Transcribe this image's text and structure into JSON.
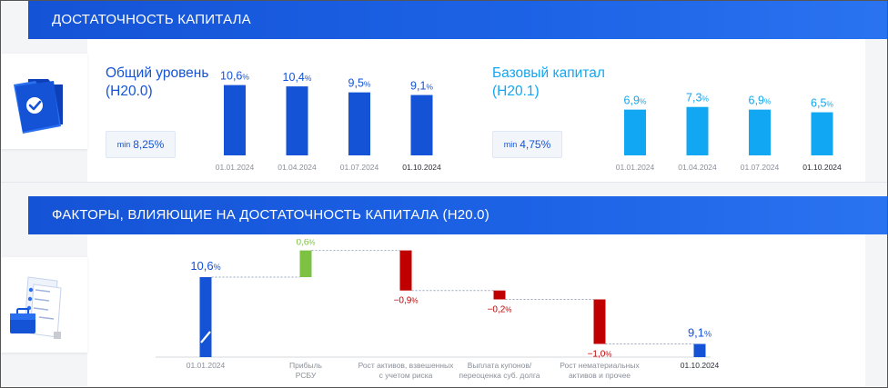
{
  "section1": {
    "title": "ДОСТАТОЧНОСТЬ КАПИТАЛА"
  },
  "section2": {
    "title": "ФАКТОРЫ, ВЛИЯЮЩИЕ НА ДОСТАТОЧНОСТЬ КАПИТАЛА (Н20.0)"
  },
  "icons": {
    "top": "folder-check-icon",
    "bottom": "document-briefcase-icon"
  },
  "colors": {
    "banner": "#1553d6",
    "dark_bar": "#1553d6",
    "light_bar": "#12a7f2",
    "positive": "#7dc242",
    "negative": "#c00000",
    "text_gray": "#8a8f98"
  },
  "metric1": {
    "title_line1": "Общий уровень",
    "title_line2": "(Н20.0)",
    "min_label": "min",
    "min_value": "8,25%"
  },
  "metric2": {
    "title_line1": "Базовый капитал",
    "title_line2": "(Н20.1)",
    "min_label": "min",
    "min_value": "4,75%"
  },
  "chart_data": [
    {
      "type": "bar",
      "title": "Общий уровень (Н20.0)",
      "categories": [
        "01.01.2024",
        "01.04.2024",
        "01.07.2024",
        "01.10.2024"
      ],
      "values": [
        10.6,
        10.4,
        9.5,
        9.1
      ],
      "labels": [
        {
          "num": "10,6",
          "unit": "%"
        },
        {
          "num": "10,4",
          "unit": "%"
        },
        {
          "num": "9,5",
          "unit": "%"
        },
        {
          "num": "9,1",
          "unit": "%"
        }
      ],
      "color": "#1553d6"
    },
    {
      "type": "bar",
      "title": "Базовый капитал (Н20.1)",
      "categories": [
        "01.01.2024",
        "01.04.2024",
        "01.07.2024",
        "01.10.2024"
      ],
      "values": [
        6.9,
        7.3,
        6.9,
        6.5
      ],
      "labels": [
        {
          "num": "6,9",
          "unit": "%"
        },
        {
          "num": "7,3",
          "unit": "%"
        },
        {
          "num": "6,9",
          "unit": "%"
        },
        {
          "num": "6,5",
          "unit": "%"
        }
      ],
      "color": "#12a7f2"
    },
    {
      "type": "bar",
      "subtype": "waterfall",
      "title": "ФАКТОРЫ, ВЛИЯЮЩИЕ НА ДОСТАТОЧНОСТЬ КАПИТАЛА (Н20.0)",
      "steps": [
        {
          "category": [
            "01.01.2024"
          ],
          "kind": "total",
          "value": 10.6,
          "label_num": "10,6",
          "label_unit": "%"
        },
        {
          "category": [
            "Прибыль",
            "РСБУ"
          ],
          "kind": "delta",
          "value": 0.6,
          "label_num": "0,6",
          "label_unit": "%"
        },
        {
          "category": [
            "Рост активов, взвешенных",
            "с учетом риска"
          ],
          "kind": "delta",
          "value": -0.9,
          "label_num": "−0,9",
          "label_unit": "%"
        },
        {
          "category": [
            "Выплата купонов/",
            "переоценка суб. долга"
          ],
          "kind": "delta",
          "value": -0.2,
          "label_num": "−0,2",
          "label_unit": "%"
        },
        {
          "category": [
            "Рост нематериальных",
            "активов и прочее"
          ],
          "kind": "delta",
          "value": -1.0,
          "label_num": "−1,0",
          "label_unit": "%"
        },
        {
          "category": [
            "01.10.2024"
          ],
          "kind": "total",
          "value": 9.1,
          "label_num": "9,1",
          "label_unit": "%"
        }
      ]
    }
  ]
}
